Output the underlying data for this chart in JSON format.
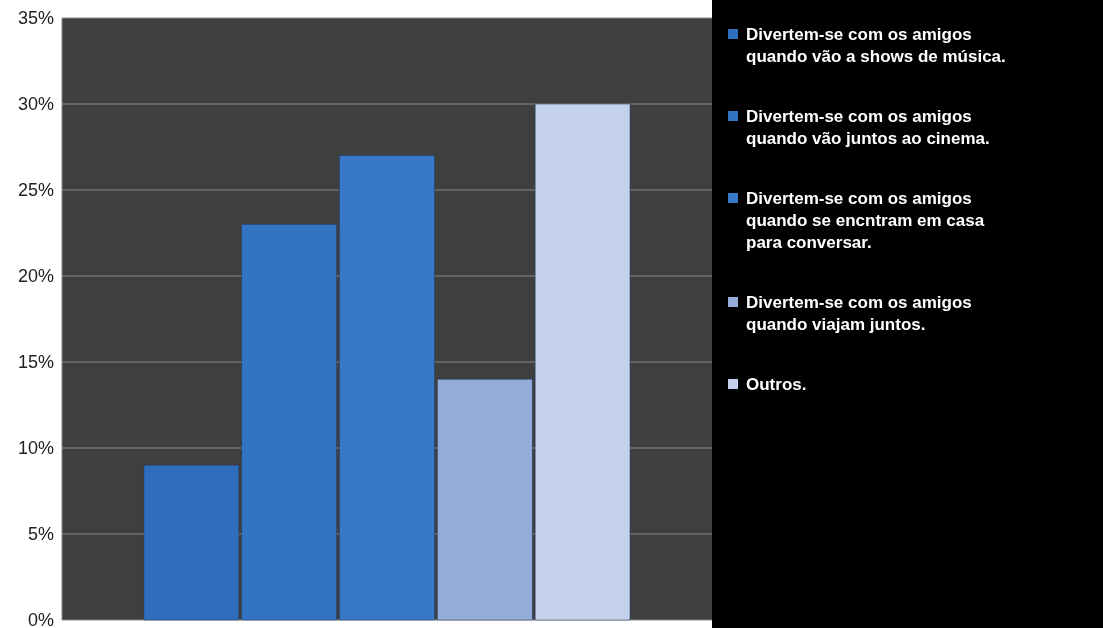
{
  "chart_data": {
    "type": "bar",
    "categories": [
      null
    ],
    "series": [
      {
        "name": "Divertem-se com os amigos quando vão a shows de música.",
        "color": "#2e6ebd",
        "values": [
          9
        ]
      },
      {
        "name": "Divertem-se com os amigos quando vão juntos ao cinema.",
        "color": "#3373c4",
        "values": [
          23
        ]
      },
      {
        "name": "Divertem-se com os amigos quando se encntram em casa para conversar.",
        "color": "#3878c8",
        "values": [
          27
        ]
      },
      {
        "name": "Divertem-se com os amigos quando viajam juntos.",
        "color": "#93acd8",
        "values": [
          14
        ]
      },
      {
        "name": "Outros.",
        "color": "#c4d1ea",
        "values": [
          30
        ]
      }
    ],
    "ylim": [
      0,
      35
    ],
    "yticks": [
      {
        "value": 0,
        "label": "0%"
      },
      {
        "value": 5,
        "label": "5%"
      },
      {
        "value": 10,
        "label": "10%"
      },
      {
        "value": 15,
        "label": "15%"
      },
      {
        "value": 20,
        "label": "20%"
      },
      {
        "value": 25,
        "label": "25%"
      },
      {
        "value": 30,
        "label": "30%"
      },
      {
        "value": 35,
        "label": "35%"
      }
    ],
    "grid": "y",
    "legend": "right"
  }
}
